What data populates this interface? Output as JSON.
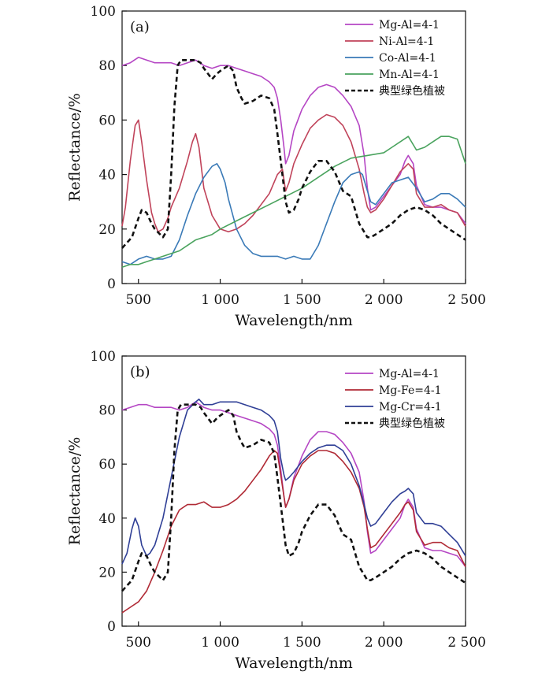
{
  "chart_data": [
    {
      "type": "line",
      "panel_label": "(a)",
      "xlabel": "Wavelength/nm",
      "ylabel": "Reflectance/%",
      "xlim": [
        400,
        2500
      ],
      "ylim": [
        0,
        100
      ],
      "xticks": [
        500,
        1000,
        1500,
        2000,
        2500
      ],
      "xtick_labels": [
        "500",
        "1 000",
        "1 500",
        "2 000",
        "2 500"
      ],
      "yticks": [
        0,
        20,
        40,
        60,
        80,
        100
      ],
      "ytick_labels": [
        "0",
        "20",
        "40",
        "60",
        "80",
        "100"
      ],
      "grid": false,
      "legend_position": "top-right",
      "series": [
        {
          "name": "Mg-Al=4-1",
          "color": "#b546c4",
          "dashed": false,
          "x": [
            400,
            450,
            500,
            550,
            600,
            650,
            700,
            750,
            800,
            850,
            900,
            950,
            1000,
            1050,
            1100,
            1150,
            1200,
            1250,
            1300,
            1330,
            1350,
            1370,
            1390,
            1400,
            1420,
            1450,
            1500,
            1550,
            1600,
            1650,
            1700,
            1750,
            1800,
            1850,
            1880,
            1900,
            1920,
            1950,
            2000,
            2050,
            2100,
            2130,
            2150,
            2180,
            2200,
            2250,
            2300,
            2350,
            2400,
            2450,
            2500
          ],
          "y": [
            80,
            81,
            83,
            82,
            81,
            81,
            81,
            80,
            81,
            82,
            80,
            79,
            80,
            80,
            79,
            78,
            77,
            76,
            74,
            72,
            68,
            60,
            50,
            44,
            47,
            56,
            64,
            69,
            72,
            73,
            72,
            69,
            65,
            58,
            47,
            35,
            27,
            28,
            32,
            36,
            40,
            45,
            47,
            44,
            36,
            29,
            28,
            28,
            27,
            26,
            22
          ]
        },
        {
          "name": "Ni-Al=4-1",
          "color": "#c0435a",
          "dashed": false,
          "x": [
            400,
            420,
            450,
            480,
            500,
            520,
            550,
            580,
            600,
            620,
            650,
            680,
            700,
            750,
            800,
            830,
            850,
            870,
            900,
            950,
            1000,
            1050,
            1100,
            1150,
            1200,
            1250,
            1300,
            1350,
            1380,
            1400,
            1420,
            1450,
            1500,
            1550,
            1600,
            1650,
            1700,
            1750,
            1800,
            1850,
            1880,
            1900,
            1920,
            1950,
            2000,
            2050,
            2100,
            2150,
            2180,
            2200,
            2250,
            2300,
            2350,
            2400,
            2450,
            2500
          ],
          "y": [
            21,
            28,
            45,
            58,
            60,
            52,
            38,
            26,
            22,
            19,
            20,
            24,
            28,
            35,
            45,
            52,
            55,
            50,
            35,
            25,
            20,
            19,
            20,
            22,
            25,
            29,
            33,
            40,
            42,
            34,
            37,
            44,
            51,
            57,
            60,
            62,
            61,
            58,
            52,
            42,
            33,
            28,
            26,
            27,
            31,
            36,
            41,
            44,
            42,
            33,
            28,
            28,
            29,
            27,
            26,
            21
          ]
        },
        {
          "name": "Co-Al=4-1",
          "color": "#3a7ab7",
          "dashed": false,
          "x": [
            400,
            450,
            500,
            550,
            600,
            650,
            700,
            750,
            800,
            850,
            900,
            950,
            980,
            1000,
            1030,
            1050,
            1100,
            1150,
            1200,
            1250,
            1300,
            1350,
            1400,
            1450,
            1500,
            1550,
            1600,
            1650,
            1700,
            1750,
            1800,
            1850,
            1870,
            1900,
            1920,
            1950,
            2000,
            2050,
            2100,
            2150,
            2200,
            2250,
            2300,
            2350,
            2400,
            2450,
            2500
          ],
          "y": [
            8,
            7,
            9,
            10,
            9,
            9,
            10,
            16,
            25,
            33,
            39,
            43,
            44,
            42,
            37,
            31,
            20,
            14,
            11,
            10,
            10,
            10,
            9,
            10,
            9,
            9,
            14,
            22,
            30,
            37,
            40,
            41,
            40,
            34,
            30,
            29,
            33,
            37,
            38,
            39,
            35,
            30,
            31,
            33,
            33,
            31,
            28
          ]
        },
        {
          "name": "Mn-Al=4-1",
          "color": "#4aa35e",
          "dashed": false,
          "x": [
            400,
            450,
            500,
            550,
            600,
            650,
            700,
            750,
            800,
            850,
            900,
            950,
            1000,
            1100,
            1200,
            1300,
            1400,
            1500,
            1600,
            1700,
            1800,
            1900,
            2000,
            2050,
            2100,
            2150,
            2200,
            2250,
            2300,
            2350,
            2400,
            2450,
            2500
          ],
          "y": [
            6,
            7,
            7,
            8,
            9,
            10,
            11,
            12,
            14,
            16,
            17,
            18,
            20,
            23,
            26,
            29,
            32,
            35,
            39,
            43,
            46,
            47,
            48,
            50,
            52,
            54,
            49,
            50,
            52,
            54,
            54,
            53,
            44
          ]
        },
        {
          "name": "典型绿色植被",
          "color": "#111111",
          "dashed": true,
          "x": [
            400,
            430,
            460,
            500,
            520,
            550,
            580,
            600,
            650,
            680,
            700,
            720,
            740,
            760,
            800,
            850,
            880,
            900,
            950,
            980,
            1000,
            1050,
            1080,
            1100,
            1130,
            1150,
            1200,
            1250,
            1300,
            1330,
            1350,
            1380,
            1400,
            1420,
            1450,
            1480,
            1500,
            1550,
            1600,
            1650,
            1700,
            1750,
            1800,
            1850,
            1880,
            1900,
            1920,
            1950,
            2000,
            2050,
            2100,
            2150,
            2200,
            2250,
            2300,
            2350,
            2400,
            2450,
            2500
          ],
          "y": [
            13,
            15,
            17,
            24,
            27,
            26,
            22,
            20,
            17,
            20,
            40,
            65,
            80,
            82,
            82,
            82,
            81,
            79,
            75,
            77,
            78,
            80,
            78,
            72,
            68,
            66,
            67,
            69,
            68,
            64,
            55,
            40,
            30,
            26,
            27,
            31,
            35,
            41,
            45,
            45,
            41,
            34,
            32,
            22,
            19,
            17,
            17,
            18,
            20,
            22,
            25,
            27,
            28,
            27,
            25,
            22,
            20,
            18,
            16
          ]
        }
      ]
    },
    {
      "type": "line",
      "panel_label": "(b)",
      "xlabel": "Wavelength/nm",
      "ylabel": "Reflectance/%",
      "xlim": [
        400,
        2500
      ],
      "ylim": [
        0,
        100
      ],
      "xticks": [
        500,
        1000,
        1500,
        2000,
        2500
      ],
      "xtick_labels": [
        "500",
        "1 000",
        "1 500",
        "2 000",
        "2 500"
      ],
      "yticks": [
        0,
        20,
        40,
        60,
        80,
        100
      ],
      "ytick_labels": [
        "0",
        "20",
        "40",
        "60",
        "80",
        "100"
      ],
      "grid": false,
      "legend_position": "top-right",
      "series": [
        {
          "name": "Mg-Al=4-1",
          "color": "#b546c4",
          "dashed": false,
          "x": [
            400,
            450,
            500,
            550,
            600,
            650,
            700,
            750,
            800,
            850,
            900,
            950,
            1000,
            1050,
            1100,
            1150,
            1200,
            1250,
            1300,
            1330,
            1350,
            1370,
            1390,
            1400,
            1420,
            1450,
            1500,
            1550,
            1600,
            1650,
            1700,
            1750,
            1800,
            1850,
            1880,
            1900,
            1920,
            1950,
            2000,
            2050,
            2100,
            2130,
            2150,
            2180,
            2200,
            2250,
            2300,
            2350,
            2400,
            2450,
            2500
          ],
          "y": [
            80,
            81,
            82,
            82,
            81,
            81,
            81,
            80,
            81,
            83,
            81,
            80,
            80,
            79,
            78,
            77,
            76,
            75,
            73,
            71,
            67,
            58,
            48,
            44,
            47,
            55,
            63,
            69,
            72,
            72,
            71,
            68,
            64,
            57,
            46,
            35,
            27,
            28,
            32,
            36,
            40,
            45,
            47,
            44,
            36,
            29,
            28,
            28,
            27,
            26,
            22
          ]
        },
        {
          "name": "Mg-Fe=4-1",
          "color": "#b02a35",
          "dashed": false,
          "x": [
            400,
            450,
            500,
            550,
            600,
            650,
            700,
            750,
            800,
            850,
            900,
            950,
            1000,
            1050,
            1100,
            1150,
            1200,
            1250,
            1300,
            1330,
            1350,
            1370,
            1390,
            1400,
            1420,
            1450,
            1500,
            1550,
            1600,
            1650,
            1700,
            1750,
            1800,
            1850,
            1880,
            1900,
            1920,
            1950,
            2000,
            2050,
            2100,
            2130,
            2150,
            2180,
            2200,
            2250,
            2300,
            2350,
            2400,
            2450,
            2500
          ],
          "y": [
            5,
            7,
            9,
            13,
            20,
            28,
            37,
            43,
            45,
            45,
            46,
            44,
            44,
            45,
            47,
            50,
            54,
            58,
            63,
            65,
            64,
            56,
            48,
            44,
            47,
            54,
            60,
            63,
            65,
            65,
            64,
            61,
            57,
            51,
            44,
            36,
            29,
            30,
            34,
            38,
            42,
            45,
            46,
            43,
            35,
            30,
            31,
            31,
            29,
            28,
            22
          ]
        },
        {
          "name": "Mg-Cr=4-1",
          "color": "#2f3f96",
          "dashed": false,
          "x": [
            400,
            430,
            460,
            480,
            500,
            520,
            550,
            570,
            600,
            650,
            700,
            750,
            800,
            850,
            870,
            900,
            950,
            1000,
            1050,
            1100,
            1150,
            1200,
            1250,
            1300,
            1330,
            1350,
            1370,
            1390,
            1400,
            1420,
            1450,
            1500,
            1550,
            1600,
            1650,
            1700,
            1750,
            1800,
            1850,
            1880,
            1900,
            1920,
            1950,
            2000,
            2050,
            2100,
            2130,
            2150,
            2180,
            2200,
            2250,
            2300,
            2350,
            2400,
            2450,
            2500
          ],
          "y": [
            23,
            27,
            36,
            40,
            37,
            30,
            26,
            27,
            30,
            40,
            55,
            70,
            80,
            83,
            84,
            82,
            82,
            83,
            83,
            83,
            82,
            81,
            80,
            78,
            76,
            72,
            62,
            56,
            54,
            55,
            57,
            61,
            64,
            66,
            67,
            67,
            65,
            60,
            52,
            45,
            40,
            37,
            38,
            42,
            46,
            49,
            50,
            51,
            49,
            42,
            38,
            38,
            37,
            34,
            31,
            26
          ]
        },
        {
          "name": "典型绿色植被",
          "color": "#111111",
          "dashed": true,
          "x": [
            400,
            430,
            460,
            500,
            520,
            550,
            580,
            600,
            650,
            680,
            700,
            720,
            740,
            760,
            800,
            850,
            880,
            900,
            950,
            980,
            1000,
            1050,
            1080,
            1100,
            1130,
            1150,
            1200,
            1250,
            1300,
            1330,
            1350,
            1380,
            1400,
            1420,
            1450,
            1480,
            1500,
            1550,
            1600,
            1650,
            1700,
            1750,
            1800,
            1850,
            1880,
            1900,
            1920,
            1950,
            2000,
            2050,
            2100,
            2150,
            2200,
            2250,
            2300,
            2350,
            2400,
            2450,
            2500
          ],
          "y": [
            13,
            15,
            17,
            24,
            27,
            26,
            22,
            20,
            17,
            20,
            40,
            65,
            80,
            82,
            82,
            82,
            81,
            79,
            75,
            77,
            78,
            80,
            78,
            72,
            68,
            66,
            67,
            69,
            68,
            64,
            55,
            40,
            30,
            26,
            27,
            31,
            35,
            41,
            45,
            45,
            41,
            34,
            32,
            22,
            19,
            17,
            17,
            18,
            20,
            22,
            25,
            27,
            28,
            27,
            25,
            22,
            20,
            18,
            16
          ]
        }
      ]
    }
  ]
}
